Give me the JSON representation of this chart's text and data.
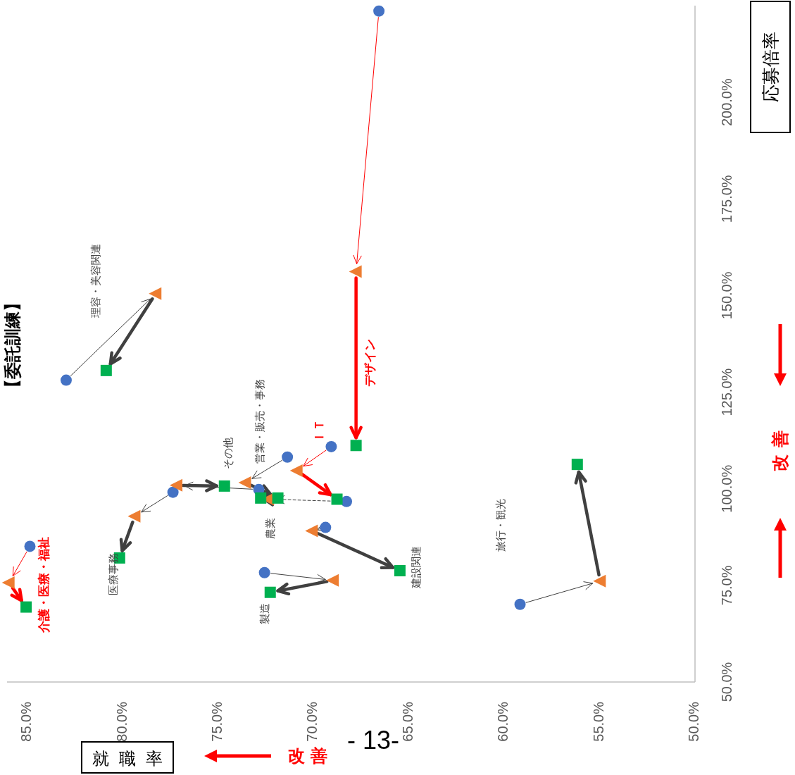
{
  "chart_data": {
    "type": "scatter",
    "title": "【委託訓練】",
    "xlabel": "就職率",
    "ylabel": "応募倍率",
    "xlim": [
      86,
      50
    ],
    "xticks": [
      {
        "value": 85,
        "label": "85.0%"
      },
      {
        "value": 80,
        "label": "80.0%"
      },
      {
        "value": 75,
        "label": "75.0%"
      },
      {
        "value": 70,
        "label": "70.0%"
      },
      {
        "value": 65,
        "label": "65.0%"
      },
      {
        "value": 60,
        "label": "60.0%"
      },
      {
        "value": 55,
        "label": "55.0%"
      },
      {
        "value": 50,
        "label": "50.0%"
      }
    ],
    "ylim": [
      50,
      225
    ],
    "yticks": [
      {
        "value": 50,
        "label": "50.0%"
      },
      {
        "value": 75,
        "label": "75.0%"
      },
      {
        "value": 100,
        "label": "100.0%"
      },
      {
        "value": 125,
        "label": "125.0%"
      },
      {
        "value": 150,
        "label": "150.0%"
      },
      {
        "value": 175,
        "label": "175.0%"
      },
      {
        "value": 200,
        "label": "200.0%"
      }
    ],
    "series": [
      {
        "marker": "circle",
        "color": "#4472c4",
        "x": [
          84.8,
          77.3,
          82.9,
          72.8,
          71.3,
          68.2,
          69.0,
          66.5,
          69.3,
          72.5,
          59.1
        ],
        "values": [
          85.1,
          99.1,
          128.1,
          99.8,
          108.2,
          96.7,
          110.9,
          223.6,
          90.0,
          78.3,
          70.1
        ]
      },
      {
        "marker": "triangle",
        "color": "#ed7d31",
        "x": [
          85.9,
          79.3,
          78.2,
          77.1,
          73.5,
          72.3,
          70.8,
          67.7,
          70.0,
          68.9,
          54.9
        ],
        "values": [
          75.7,
          92.9,
          150.5,
          100.9,
          101.6,
          97.3,
          104.7,
          156.2,
          89.1,
          76.3,
          76.1
        ]
      },
      {
        "marker": "square",
        "color": "#00b050",
        "x": [
          85.0,
          80.1,
          80.8,
          74.6,
          71.8,
          72.7,
          68.7,
          67.7,
          65.4,
          72.2,
          56.1
        ],
        "values": [
          69.4,
          82.1,
          130.6,
          100.7,
          97.6,
          97.6,
          97.3,
          111.2,
          78.8,
          73.2,
          106.3
        ]
      }
    ],
    "annotations": [
      "介護・医療・福祉",
      "医療事務",
      "理容・美容関連",
      "その他",
      "営業・販売・事務",
      "農業",
      "ＩＴ",
      "デザイン",
      "建設関連",
      {
        "text": "製造",
        "x": 72.2,
        "y": 73.2
      },
      "旅行・観光",
      "改善",
      "改善",
      "- 13-"
    ]
  }
}
